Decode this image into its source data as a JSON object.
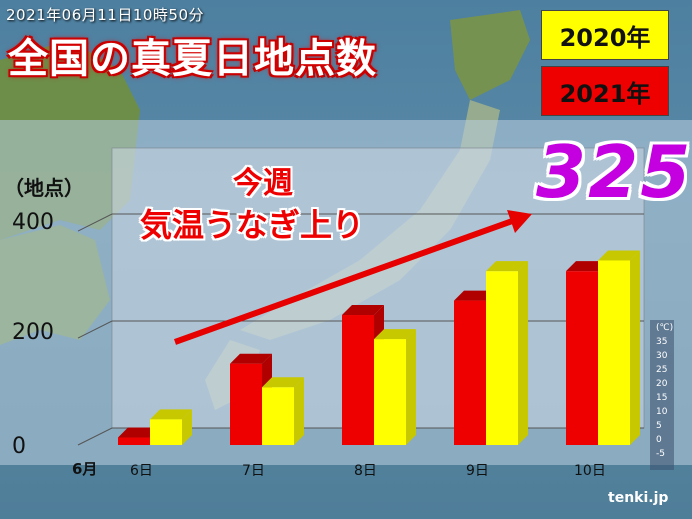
{
  "header": {
    "timestamp": "2021年06月11日10時50分",
    "title": "全国の真夏日地点数"
  },
  "legend": {
    "label_2020": "2020年",
    "label_2021": "2021年",
    "color_2020": "#ffff00",
    "color_2021": "#ee0000"
  },
  "annotation": {
    "line1": "今週",
    "line2": "気温うなぎ上り",
    "highlight_value": "325",
    "highlight_color": "#c400e0"
  },
  "scale_legend": {
    "unit": "(℃)",
    "labels": [
      "35",
      "30",
      "25",
      "20",
      "15",
      "10",
      "5",
      "0",
      "-5"
    ]
  },
  "brand": "tenki.jp",
  "chart_data": {
    "type": "bar",
    "categories": [
      "6日",
      "7日",
      "8日",
      "9日",
      "10日"
    ],
    "month_label": "6月",
    "ylabel": "（地点）",
    "ylim": [
      0,
      430
    ],
    "yticks": [
      0,
      200,
      400
    ],
    "grid": true,
    "legend_position": "top-right",
    "series": [
      {
        "name": "2021年",
        "color": "#ee0000",
        "values": [
          14,
          152,
          243,
          270,
          325
        ]
      },
      {
        "name": "2020年",
        "color": "#ffff00",
        "values": [
          48,
          108,
          198,
          325,
          345
        ]
      }
    ]
  }
}
